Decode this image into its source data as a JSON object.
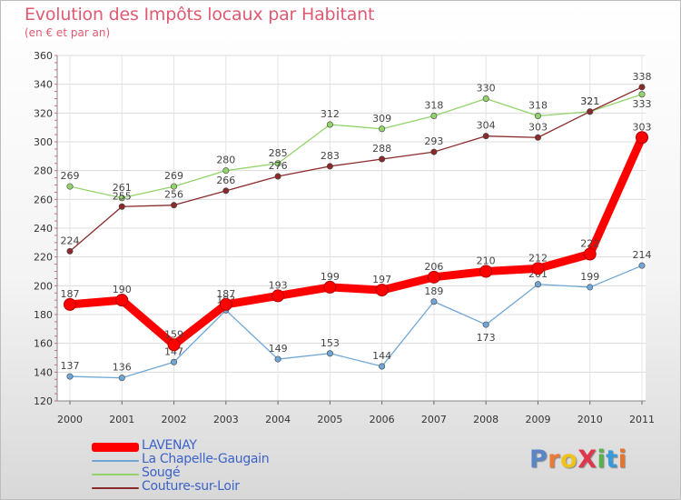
{
  "title": "Evolution des Impôts locaux par Habitant",
  "subtitle": "(en € et par an)",
  "logo": {
    "text": "ProXiti",
    "colors": [
      "#5a86c8",
      "#e87a3a",
      "#f0c21d",
      "#e0364c",
      "#56b24a",
      "#3a9ad8",
      "#e8732a"
    ]
  },
  "chart_data": {
    "type": "line",
    "x": [
      "2000",
      "2001",
      "2002",
      "2003",
      "2004",
      "2005",
      "2006",
      "2007",
      "2008",
      "2009",
      "2010",
      "2011"
    ],
    "ylim": [
      120,
      360
    ],
    "yticks": [
      120,
      140,
      160,
      180,
      200,
      220,
      240,
      260,
      280,
      300,
      320,
      340,
      360
    ],
    "grid": true,
    "legend_position": "bottom-left",
    "series": [
      {
        "name": "LAVENAY",
        "color": "#ff0000",
        "values": [
          187,
          190,
          159,
          187,
          193,
          199,
          197,
          206,
          210,
          212,
          222,
          303
        ]
      },
      {
        "name": "La Chapelle-Gaugain",
        "color": "#6fa6d6",
        "values": [
          137,
          136,
          147,
          183,
          149,
          153,
          144,
          189,
          173,
          201,
          199,
          214
        ]
      },
      {
        "name": "Sougé",
        "color": "#92d36a",
        "values": [
          269,
          261,
          269,
          280,
          285,
          312,
          309,
          318,
          330,
          318,
          321,
          333
        ]
      },
      {
        "name": "Couture-sur-Loir",
        "color": "#8b2a2a",
        "values": [
          224,
          255,
          256,
          266,
          276,
          283,
          288,
          293,
          304,
          303,
          321,
          338
        ]
      }
    ]
  }
}
